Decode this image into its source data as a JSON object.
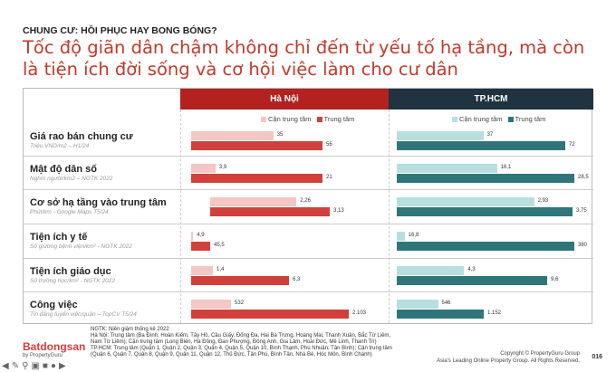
{
  "kicker": "CHUNG CƯ: HỒI PHỤC HAY BONG BÓNG?",
  "title": "Tốc độ giãn dân chậm không chỉ đến từ yếu tố hạ tầng, mà còn là tiện ích đời sống và cơ hội việc làm cho cư dân",
  "columns": {
    "hanoi": "Hà Nội",
    "hcm": "TP.HCM"
  },
  "legend": {
    "near": "Cận trung tâm",
    "central": "Trung tâm"
  },
  "colors": {
    "hn_near": "#f4c6c4",
    "hn_central": "#d0413b",
    "hcm_near": "#b7dfe0",
    "hcm_central": "#2f7679",
    "hn_header": "#b3221f",
    "hcm_header": "#1f3341"
  },
  "chart_data": {
    "type": "bar",
    "categories": [
      "Giá rao bán chung cư",
      "Mật độ dân số",
      "Cơ sở hạ tầng vào trung tâm",
      "Tiện ích y tế",
      "Tiện ích giáo dục",
      "Công việc"
    ],
    "sources": [
      "Triệu VND/m2 – H1/24",
      "Nghìn người/km2 – NGTK 2022",
      "Phút/km - Google Maps T5/24",
      "Số giường bệnh viện/km² - NGTK 2022",
      "Số trường học/km² - NGTK 2022",
      "Tin đăng tuyển việc/quận – TopCV T5/24"
    ],
    "series": [
      {
        "name": "Hà Nội - Cận trung tâm",
        "values": [
          35,
          3.9,
          2.26,
          4.9,
          1.4,
          532
        ],
        "labels": [
          "35",
          "3,9",
          "2,26",
          "4,9",
          "1,4",
          "532"
        ]
      },
      {
        "name": "Hà Nội - Trung tâm",
        "values": [
          56,
          21,
          3.13,
          45.5,
          6.3,
          2103
        ],
        "labels": [
          "56",
          "21",
          "3,13",
          "45,5",
          "6,3",
          "2.103"
        ]
      },
      {
        "name": "TP.HCM - Cận trung tâm",
        "values": [
          37,
          16.1,
          2.93,
          16.8,
          4.3,
          546
        ],
        "labels": [
          "37",
          "16,1",
          "2,93",
          "16,8",
          "4,3",
          "546"
        ]
      },
      {
        "name": "TP.HCM - Trung tâm",
        "values": [
          72,
          28.5,
          3.75,
          380,
          9.6,
          1152
        ],
        "labels": [
          "72",
          "28,5",
          "3,75",
          "380",
          "9,6",
          "1.152"
        ]
      }
    ]
  },
  "footnotes": [
    "NGTK: Niên giám thống kê 2022",
    "Hà Nội: Trung tâm (Ba Đình, Hoàn Kiếm, Tây Hồ, Cầu Giấy, Đống Đa, Hai Bà Trưng, Hoàng Mai, Thanh Xuân, Bắc Từ Liêm, Nam Từ Liêm); Cận trung tâm (Long Biên, Hà Đông, Đan Phượng, Đông Anh, Gia Lâm, Hoài Đức, Mê Linh, Thanh Trì)",
    "TP.HCM: Trung tâm (Quận 1, Quận 2, Quận 3, Quận 4, Quận 5, Quận 10, Bình Thạnh, Phú Nhuận, Tân Bình); Cận trung tâm (Quận 6, Quận 7, Quận 8, Quận 9, Quận 11, Quận 12, Thủ Đức, Tân Phú, Bình Tân, Nhà Bè, Hóc Môn, Bình Chánh)"
  ],
  "logo": {
    "name": "Batdongsan",
    "domain": ".com.vn",
    "by": "by PropertyGuru"
  },
  "copyright": [
    "Copyright © PropertyGuru Group",
    "Asia's Leading Online Property Group. All Rights Reserved."
  ],
  "page_number": "016"
}
